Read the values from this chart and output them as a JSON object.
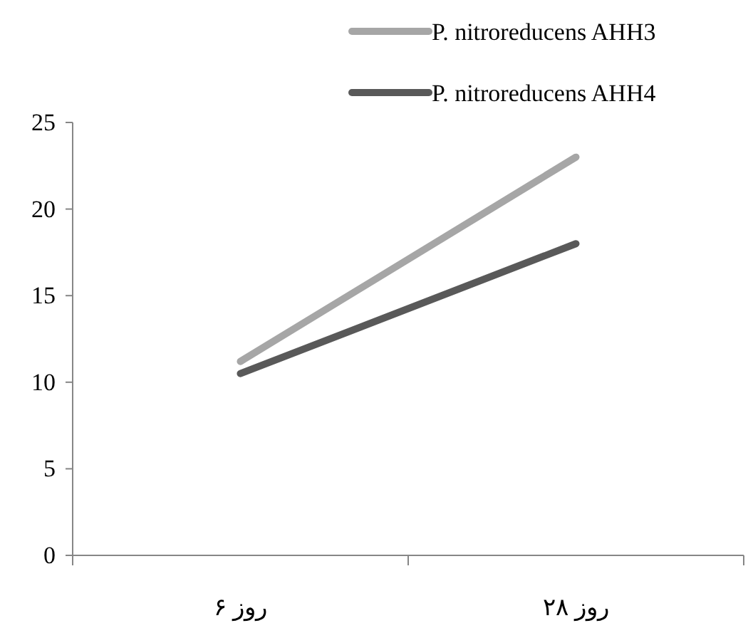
{
  "chart_data": {
    "type": "line",
    "categories": [
      "روز ۶",
      "روز ۲۸"
    ],
    "series": [
      {
        "name": "P. nitroreducens AHH3",
        "color": "#a6a6a6",
        "values": [
          11.2,
          23
        ]
      },
      {
        "name": "P. nitroreducens AHH4",
        "color": "#595959",
        "values": [
          10.5,
          18
        ]
      }
    ],
    "ylim": [
      0,
      25
    ],
    "yticks": [
      0,
      5,
      10,
      15,
      20,
      25
    ],
    "grid": false,
    "legend": "top right",
    "marker": "none",
    "line_style": "solid"
  }
}
